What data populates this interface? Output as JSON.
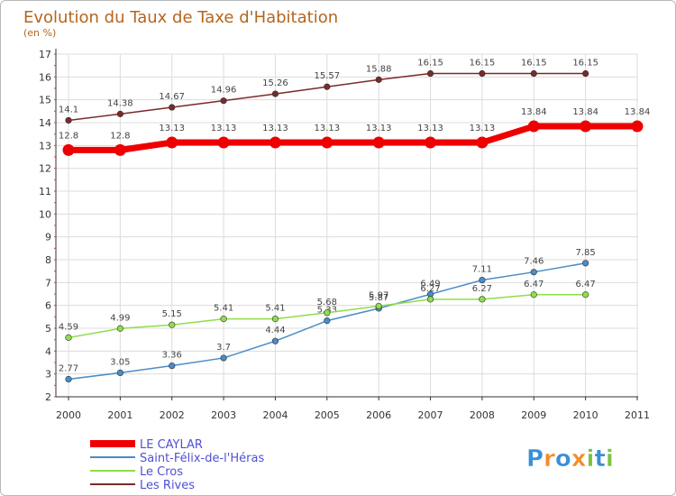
{
  "chart_data": {
    "type": "line",
    "title": "Evolution du Taux de Taxe d'Habitation",
    "subtitle": "(en %)",
    "x": [
      "2000",
      "2001",
      "2002",
      "2003",
      "2004",
      "2005",
      "2006",
      "2007",
      "2008",
      "2009",
      "2010",
      "2011"
    ],
    "ylim": [
      2,
      17
    ],
    "yticks": [
      2,
      3,
      4,
      5,
      6,
      7,
      8,
      9,
      10,
      11,
      12,
      13,
      14,
      15,
      16,
      17
    ],
    "grid": true,
    "legend_position": "bottom-left",
    "series": [
      {
        "name": "LE CAYLAR",
        "color": "#ee0000",
        "values": [
          12.8,
          12.8,
          13.13,
          13.13,
          13.13,
          13.13,
          13.13,
          13.13,
          13.13,
          13.84,
          13.84,
          13.84
        ],
        "labels": [
          "12.8",
          "12.8",
          "13.13",
          "13.13",
          "13.13",
          "13.13",
          "13.13",
          "13.13",
          "13.13",
          "13.84",
          "13.84",
          "13.84"
        ]
      },
      {
        "name": "Saint-Félix-de-l'Héras",
        "color": "#4a8cc9",
        "values": [
          2.77,
          3.05,
          3.36,
          3.7,
          4.44,
          5.33,
          5.87,
          6.49,
          7.11,
          7.46,
          7.85,
          null
        ],
        "labels": [
          "2.77",
          "3.05",
          "3.36",
          "3.7",
          "4.44",
          "5.33",
          "5.87",
          "6.49",
          "7.11",
          "7.46",
          "7.85",
          ""
        ]
      },
      {
        "name": "Le Cros",
        "color": "#8fde4a",
        "values": [
          4.59,
          4.99,
          5.15,
          5.41,
          5.41,
          5.68,
          5.97,
          6.27,
          6.27,
          6.47,
          6.47,
          null
        ],
        "labels": [
          "4.59",
          "4.99",
          "5.15",
          "5.41",
          "5.41",
          "5.68",
          "5.97",
          "6.27",
          "6.27",
          "6.47",
          "6.47",
          ""
        ]
      },
      {
        "name": "Les Rives",
        "color": "#7a2a2a",
        "values": [
          14.1,
          14.38,
          14.67,
          14.96,
          15.26,
          15.57,
          15.88,
          16.15,
          16.15,
          16.15,
          16.15,
          null
        ],
        "labels": [
          "14.1",
          "14.38",
          "14.67",
          "14.96",
          "15.26",
          "15.57",
          "15.88",
          "16.15",
          "16.15",
          "16.15",
          "16.15",
          ""
        ]
      }
    ]
  },
  "logo": {
    "text": "Proxiti",
    "colors": [
      "#3a8fd6",
      "#f28c28",
      "#3a8fd6",
      "#f28c28",
      "#7cc242",
      "#3a8fd6",
      "#7cc242"
    ]
  }
}
